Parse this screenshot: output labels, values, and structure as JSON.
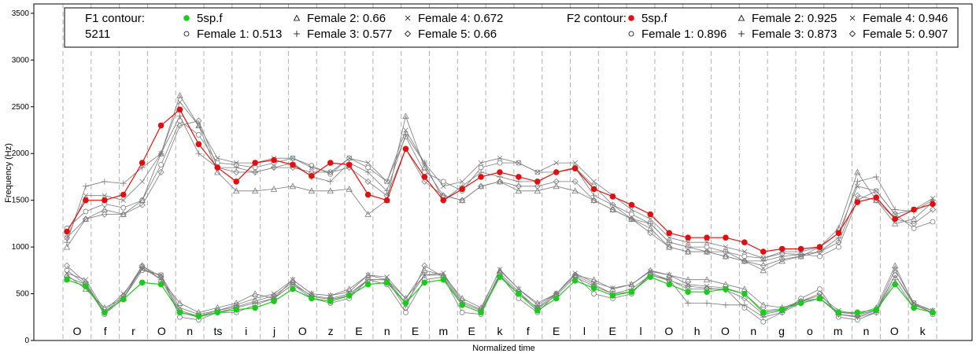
{
  "chart_data": {
    "type": "line",
    "title": "",
    "xlabel": "Normalized time",
    "ylabel": "Frequency (Hz)",
    "ylim": [
      0,
      3600
    ],
    "yticks": [
      0,
      500,
      1000,
      1500,
      2000,
      2500,
      3000,
      3500
    ],
    "grid": "vertical dashed segment boundaries",
    "segments": [
      "O",
      "f",
      "r",
      "O",
      "n",
      "ts",
      "i",
      "j",
      "O",
      "z",
      "E",
      "n",
      "E",
      "m",
      "E",
      "k",
      "f",
      "E",
      "l",
      "E",
      "l",
      "O",
      "h",
      "O",
      "n",
      "g",
      "o",
      "m",
      "n",
      "O",
      "k"
    ],
    "legend": {
      "f1_title": "F1 contour:",
      "f1_id": "5211",
      "f2_title": "F2 contour:",
      "f1_entries": [
        {
          "label": "5sp.f",
          "marker": "filled-circle",
          "color": "#1ec81e"
        },
        {
          "label": "Female 1: 0.513",
          "marker": "open-circle"
        },
        {
          "label": "Female 2: 0.66",
          "marker": "triangle"
        },
        {
          "label": "Female 3: 0.577",
          "marker": "plus"
        },
        {
          "label": "Female 4: 0.672",
          "marker": "cross"
        },
        {
          "label": "Female 5: 0.66",
          "marker": "diamond"
        }
      ],
      "f2_entries": [
        {
          "label": "5sp.f",
          "marker": "filled-circle",
          "color": "#e01010"
        },
        {
          "label": "Female 1: 0.896",
          "marker": "open-circle"
        },
        {
          "label": "Female 2: 0.925",
          "marker": "triangle"
        },
        {
          "label": "Female 3: 0.873",
          "marker": "plus"
        },
        {
          "label": "Female 4: 0.946",
          "marker": "cross"
        },
        {
          "label": "Female 5: 0.907",
          "marker": "diamond"
        }
      ]
    },
    "series": [
      {
        "name": "5sp.f",
        "formant": "F2",
        "color": "#e01010",
        "values": [
          1165,
          1500,
          1500,
          1560,
          1900,
          2300,
          2470,
          2100,
          1850,
          1700,
          1900,
          1930,
          1880,
          1760,
          1900,
          1880,
          1560,
          1500,
          2050,
          1750,
          1500,
          1620,
          1750,
          1800,
          1750,
          1700,
          1800,
          1840,
          1620,
          1540,
          1450,
          1350,
          1150,
          1100,
          1100,
          1100,
          1050,
          950,
          980,
          980,
          1000,
          1150,
          1480,
          1530,
          1300,
          1400,
          1460
        ]
      },
      {
        "name": "Female 1: 0.896",
        "formant": "F2",
        "color": "#909090",
        "values": [
          1200,
          1380,
          1460,
          1420,
          1500,
          1880,
          2350,
          2200,
          1900,
          1880,
          1850,
          1900,
          1950,
          1870,
          1780,
          1950,
          1850,
          1700,
          2180,
          1800,
          1700,
          1600,
          1850,
          1900,
          1900,
          1800,
          1800,
          1850,
          1650,
          1450,
          1350,
          1250,
          1050,
          1000,
          1000,
          950,
          900,
          880,
          930,
          920,
          900,
          1000,
          1500,
          1600,
          1350,
          1200,
          1270
        ]
      },
      {
        "name": "Female 2: 0.925",
        "formant": "F2",
        "color": "#909090",
        "values": [
          1000,
          1300,
          1400,
          1350,
          1500,
          2000,
          2620,
          2300,
          1800,
          1600,
          1600,
          1620,
          1650,
          1600,
          1600,
          1620,
          1350,
          1500,
          2400,
          1850,
          1550,
          1500,
          1650,
          1700,
          1600,
          1600,
          1650,
          1600,
          1500,
          1400,
          1300,
          1200,
          1000,
          950,
          950,
          900,
          850,
          750,
          850,
          900,
          1000,
          1200,
          1800,
          1500,
          1250,
          1300,
          1480
        ]
      },
      {
        "name": "Female 3: 0.873",
        "formant": "F2",
        "color": "#909090",
        "values": [
          1050,
          1650,
          1700,
          1680,
          1850,
          2000,
          2400,
          2000,
          1850,
          1850,
          1800,
          1850,
          1900,
          1750,
          1700,
          1900,
          1800,
          1600,
          2200,
          1900,
          1500,
          1650,
          1800,
          1750,
          1700,
          1700,
          1800,
          1850,
          1550,
          1450,
          1300,
          1250,
          1050,
          1000,
          950,
          950,
          850,
          850,
          900,
          920,
          950,
          1100,
          1700,
          1750,
          1400,
          1380,
          1500
        ]
      },
      {
        "name": "Female 4: 0.946",
        "formant": "F2",
        "color": "#909090",
        "values": [
          1100,
          1550,
          1550,
          1500,
          1700,
          2000,
          2550,
          2300,
          1950,
          1900,
          1900,
          1950,
          1950,
          1850,
          1800,
          1950,
          1900,
          1700,
          2250,
          1900,
          1650,
          1700,
          1900,
          1950,
          1900,
          1800,
          1900,
          1900,
          1700,
          1550,
          1400,
          1300,
          1100,
          1050,
          1050,
          1000,
          950,
          880,
          950,
          950,
          1000,
          1150,
          1650,
          1600,
          1350,
          1400,
          1520
        ]
      },
      {
        "name": "Female 5: 0.907",
        "formant": "F2",
        "color": "#909090",
        "values": [
          1100,
          1300,
          1350,
          1350,
          1450,
          1800,
          2300,
          2350,
          1850,
          1800,
          1800,
          1850,
          1850,
          1800,
          1800,
          1850,
          1700,
          1550,
          2050,
          1700,
          1550,
          1500,
          1650,
          1700,
          1650,
          1650,
          1700,
          1700,
          1500,
          1400,
          1300,
          1150,
          1000,
          950,
          950,
          900,
          850,
          800,
          870,
          900,
          950,
          1050,
          1550,
          1500,
          1300,
          1250,
          1400
        ]
      },
      {
        "name": "5sp.f",
        "formant": "F1",
        "color": "#1ec81e",
        "values": [
          650,
          580,
          300,
          440,
          620,
          600,
          300,
          260,
          300,
          330,
          350,
          420,
          550,
          450,
          420,
          480,
          600,
          620,
          400,
          620,
          650,
          380,
          300,
          680,
          500,
          320,
          450,
          640,
          560,
          480,
          520,
          680,
          600,
          520,
          520,
          550,
          500,
          300,
          330,
          400,
          450,
          300,
          300,
          330,
          600,
          350,
          300
        ]
      },
      {
        "name": "Female 1: 0.513",
        "formant": "F1",
        "color": "#909090",
        "values": [
          750,
          600,
          280,
          450,
          750,
          700,
          250,
          220,
          300,
          300,
          380,
          450,
          600,
          450,
          400,
          450,
          650,
          600,
          300,
          650,
          680,
          300,
          280,
          700,
          450,
          300,
          500,
          700,
          500,
          450,
          500,
          720,
          650,
          550,
          550,
          550,
          350,
          200,
          300,
          450,
          550,
          250,
          220,
          300,
          700,
          400,
          280
        ]
      },
      {
        "name": "Female 2: 0.66",
        "formant": "F1",
        "color": "#909090",
        "values": [
          700,
          550,
          350,
          450,
          800,
          650,
          400,
          300,
          350,
          400,
          500,
          450,
          650,
          500,
          480,
          550,
          700,
          650,
          450,
          750,
          700,
          450,
          350,
          750,
          550,
          400,
          500,
          700,
          650,
          550,
          600,
          750,
          700,
          650,
          650,
          600,
          550,
          380,
          350,
          420,
          450,
          300,
          280,
          350,
          800,
          380,
          320
        ]
      },
      {
        "name": "Female 3: 0.577",
        "formant": "F1",
        "color": "#909090",
        "values": [
          680,
          600,
          300,
          450,
          780,
          650,
          300,
          250,
          300,
          350,
          400,
          450,
          600,
          480,
          450,
          500,
          650,
          650,
          400,
          700,
          700,
          400,
          320,
          700,
          500,
          350,
          500,
          700,
          600,
          500,
          550,
          700,
          650,
          400,
          400,
          380,
          380,
          250,
          300,
          400,
          450,
          280,
          250,
          300,
          650,
          350,
          300
        ]
      },
      {
        "name": "Female 4: 0.672",
        "formant": "F1",
        "color": "#909090",
        "values": [
          720,
          650,
          320,
          500,
          760,
          700,
          350,
          280,
          320,
          380,
          450,
          500,
          650,
          500,
          480,
          520,
          700,
          680,
          450,
          700,
          720,
          420,
          330,
          760,
          550,
          380,
          500,
          720,
          620,
          560,
          600,
          740,
          700,
          600,
          580,
          560,
          500,
          320,
          340,
          420,
          480,
          320,
          280,
          320,
          760,
          400,
          320
        ]
      },
      {
        "name": "Female 5: 0.66",
        "formant": "F1",
        "color": "#909090",
        "values": [
          800,
          620,
          300,
          480,
          800,
          680,
          320,
          260,
          320,
          360,
          420,
          480,
          620,
          470,
          440,
          480,
          650,
          650,
          350,
          800,
          680,
          380,
          300,
          720,
          520,
          340,
          480,
          680,
          580,
          500,
          520,
          700,
          640,
          580,
          560,
          540,
          450,
          280,
          320,
          420,
          500,
          280,
          260,
          320,
          700,
          380,
          300
        ]
      }
    ]
  }
}
